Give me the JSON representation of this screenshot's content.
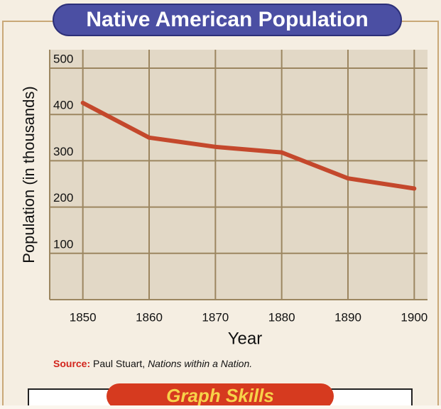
{
  "chart_data": {
    "type": "line",
    "title": "Native American Population",
    "x_label": "Year",
    "y_label": "Population (in thousands)",
    "x": [
      1850,
      1860,
      1870,
      1880,
      1890,
      1900
    ],
    "series": [
      {
        "name": "Native American Population",
        "color": "#c4482c",
        "values": [
          425,
          350,
          330,
          318,
          262,
          240
        ]
      }
    ],
    "xlim": [
      1845,
      1902
    ],
    "xticks": [
      1850,
      1860,
      1870,
      1880,
      1890,
      1900
    ],
    "ylim": [
      0,
      500
    ],
    "yticks": [
      100,
      200,
      300,
      400,
      500
    ],
    "grid": true,
    "source": {
      "label": "Source:",
      "author": "Paul Stuart,",
      "title": "Nations within a Nation."
    },
    "footer": "Graph Skills"
  }
}
